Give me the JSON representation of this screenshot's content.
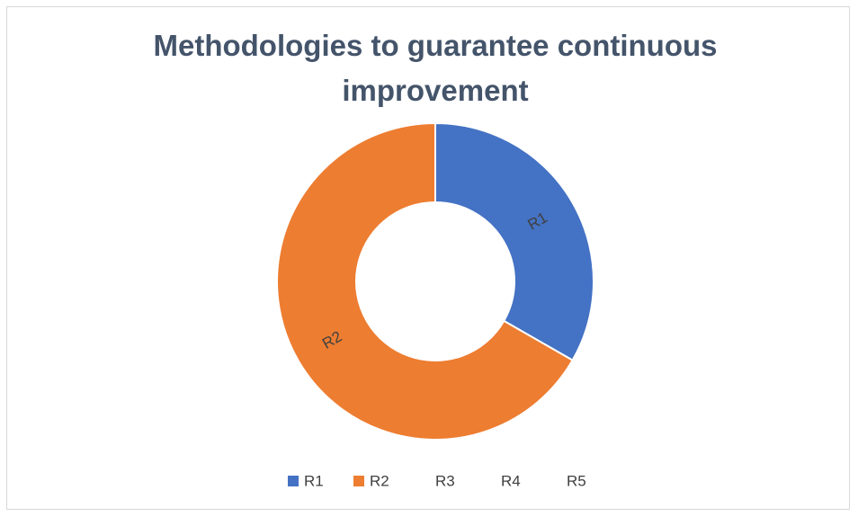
{
  "chart_data": {
    "type": "donut",
    "title": "Methodologies to guarantee continuous improvement",
    "categories": [
      "R1",
      "R2",
      "R3",
      "R4",
      "R5"
    ],
    "values": [
      33.3,
      66.7,
      0,
      0,
      0
    ],
    "colors": [
      "#4472c4",
      "#ed7d31",
      null,
      null,
      null
    ],
    "legend": "bottom"
  }
}
